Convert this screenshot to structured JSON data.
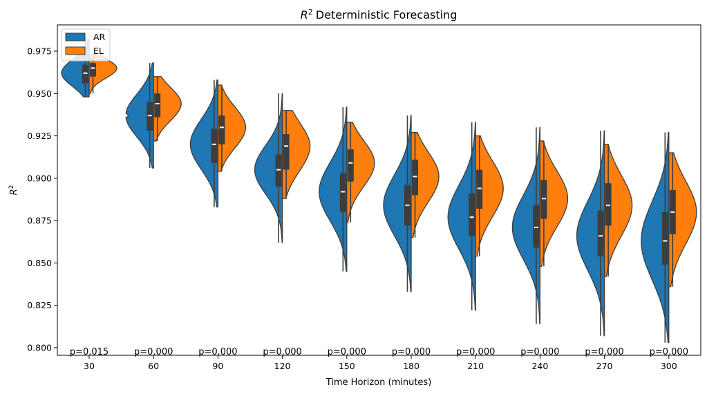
{
  "chart_data": {
    "type": "violin",
    "title": "Deterministic Forecasting",
    "title_math": "R",
    "title_sup": "2",
    "xlabel": "Time Horizon (minutes)",
    "ylabel_base": "R",
    "ylabel_sup": "2",
    "ylim": [
      0.7955,
      0.9905
    ],
    "yticks": [
      0.8,
      0.825,
      0.85,
      0.875,
      0.9,
      0.925,
      0.95,
      0.975
    ],
    "ytick_labels": [
      "0.800",
      "0.825",
      "0.850",
      "0.875",
      "0.900",
      "0.925",
      "0.950",
      "0.975"
    ],
    "categories": [
      "30",
      "60",
      "90",
      "120",
      "150",
      "180",
      "210",
      "240",
      "270",
      "300"
    ],
    "legend_position": "top-left",
    "split_violin": true,
    "series": [
      {
        "name": "AR",
        "color": "#1f77b4",
        "median": [
          0.962,
          0.937,
          0.92,
          0.905,
          0.892,
          0.884,
          0.877,
          0.871,
          0.866,
          0.863
        ],
        "q1": [
          0.956,
          0.928,
          0.909,
          0.895,
          0.88,
          0.872,
          0.866,
          0.859,
          0.854,
          0.849
        ],
        "q3": [
          0.967,
          0.945,
          0.929,
          0.914,
          0.903,
          0.896,
          0.891,
          0.884,
          0.881,
          0.88
        ],
        "min": [
          0.948,
          0.906,
          0.883,
          0.862,
          0.845,
          0.833,
          0.822,
          0.814,
          0.807,
          0.803
        ],
        "max": [
          0.982,
          0.968,
          0.958,
          0.95,
          0.942,
          0.937,
          0.933,
          0.93,
          0.928,
          0.927
        ]
      },
      {
        "name": "EL",
        "color": "#ff7f0e",
        "median": [
          0.965,
          0.944,
          0.93,
          0.919,
          0.909,
          0.901,
          0.894,
          0.888,
          0.884,
          0.88
        ],
        "q1": [
          0.96,
          0.936,
          0.92,
          0.905,
          0.898,
          0.89,
          0.882,
          0.876,
          0.872,
          0.867
        ],
        "q3": [
          0.968,
          0.95,
          0.937,
          0.926,
          0.917,
          0.911,
          0.905,
          0.899,
          0.897,
          0.893
        ],
        "min": [
          0.95,
          0.922,
          0.904,
          0.888,
          0.874,
          0.865,
          0.854,
          0.848,
          0.842,
          0.836
        ],
        "max": [
          0.973,
          0.96,
          0.955,
          0.94,
          0.933,
          0.927,
          0.925,
          0.922,
          0.92,
          0.915
        ]
      }
    ],
    "p_values": [
      "p=0.015",
      "p=0.000",
      "p=0.000",
      "p=0.000",
      "p=0.000",
      "p=0.000",
      "p=0.000",
      "p=0.000",
      "p=0.000",
      "p=0.000"
    ],
    "colors": {
      "violin_edge": "#3d3d3d",
      "box": "#3d3d3d",
      "median_mark": "#ffffff"
    }
  }
}
